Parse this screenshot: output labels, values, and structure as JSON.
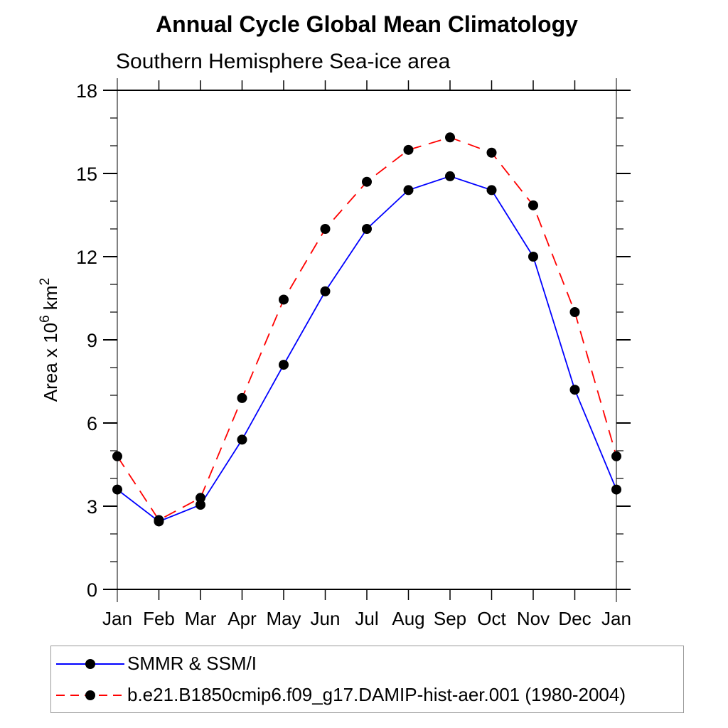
{
  "chart_data": {
    "type": "line",
    "title": "Annual Cycle Global Mean Climatology",
    "subtitle": "Southern Hemisphere Sea-ice area",
    "categories": [
      "Jan",
      "Feb",
      "Mar",
      "Apr",
      "May",
      "Jun",
      "Jul",
      "Aug",
      "Sep",
      "Oct",
      "Nov",
      "Dec",
      "Jan"
    ],
    "series": [
      {
        "name": "SMMR & SSM/I",
        "color": "#0000ff",
        "style": "solid",
        "marker": "filled-circle",
        "marker_color": "#000000",
        "values": [
          3.6,
          2.45,
          3.05,
          5.4,
          8.1,
          10.75,
          13.0,
          14.4,
          14.9,
          14.4,
          12.0,
          7.2,
          3.6
        ]
      },
      {
        "name": "b.e21.B1850cmip6.f09_g17.DAMIP-hist-aer.001 (1980-2004)",
        "color": "#ff0000",
        "style": "dashed",
        "marker": "filled-circle",
        "marker_color": "#000000",
        "values": [
          4.8,
          2.5,
          3.3,
          6.9,
          10.45,
          13.0,
          14.7,
          15.85,
          16.3,
          15.75,
          13.85,
          10.0,
          4.8
        ]
      }
    ],
    "xlabel": "",
    "ylabel_plain": "Area x 10^6 km^2",
    "ylabel_parts": [
      {
        "t": "Area x 10"
      },
      {
        "t": "6",
        "sup": true
      },
      {
        "t": " km"
      },
      {
        "t": "2",
        "sup": true
      }
    ],
    "ylim": [
      0,
      18
    ],
    "yticks_major": [
      0,
      3,
      6,
      9,
      12,
      15,
      18
    ],
    "ytick_minor_step": 1,
    "grid": false,
    "legend_position": "bottom"
  }
}
